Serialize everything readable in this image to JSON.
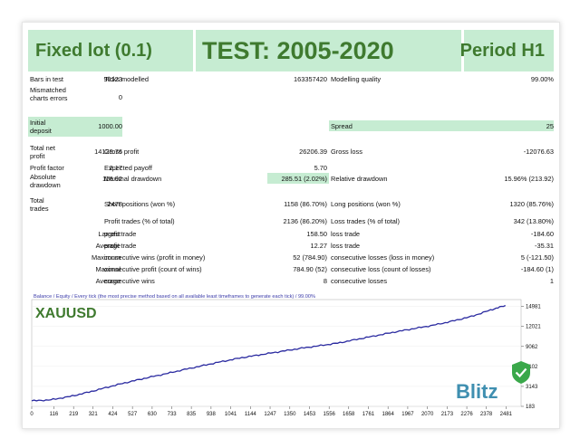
{
  "banner": {
    "left": "Fixed lot (0.1)",
    "center": "TEST: 2005-2020",
    "right": "Period H1"
  },
  "stats": {
    "bars_in_test": {
      "label": "Bars in test",
      "value": "90123"
    },
    "ticks_modelled": {
      "label": "Ticks modelled",
      "value": "163357420"
    },
    "modelling_quality": {
      "label": "Modelling quality",
      "value": "99.00%"
    },
    "mismatched": {
      "label": "Mismatched charts errors",
      "value": "0"
    },
    "initial_deposit": {
      "label": "Initial deposit",
      "value": "1000.00"
    },
    "spread": {
      "label": "Spread",
      "value": "25"
    },
    "total_net_profit": {
      "label": "Total net profit",
      "value": "14129.76"
    },
    "gross_profit": {
      "label": "Gross profit",
      "value": "26206.39"
    },
    "gross_loss": {
      "label": "Gross loss",
      "value": "-12076.63"
    },
    "profit_factor": {
      "label": "Profit factor",
      "value": "2.17"
    },
    "expected_payoff": {
      "label": "Expected payoff",
      "value": "5.70"
    },
    "absolute_drawdown": {
      "label": "Absolute drawdown",
      "value": "116.92"
    },
    "maximal_drawdown": {
      "label": "Maximal drawdown",
      "value": "285.51 (2.02%)"
    },
    "relative_drawdown": {
      "label": "Relative drawdown",
      "value": "15.96% (213.92)"
    },
    "total_trades": {
      "label": "Total trades",
      "value": "2478"
    },
    "short_positions": {
      "label": "Short positions (won %)",
      "value": "1158 (86.70%)"
    },
    "long_positions": {
      "label": "Long positions (won %)",
      "value": "1320 (85.76%)"
    },
    "profit_trades": {
      "label": "Profit trades (% of total)",
      "value": "2136 (86.20%)"
    },
    "loss_trades": {
      "label": "Loss trades (% of total)",
      "value": "342 (13.80%)"
    },
    "largest": {
      "label": "Largest",
      "profit_label": "profit trade",
      "profit_value": "158.50",
      "loss_label": "loss trade",
      "loss_value": "-184.60"
    },
    "average": {
      "label": "Average",
      "profit_label": "profit trade",
      "profit_value": "12.27",
      "loss_label": "loss trade",
      "loss_value": "-35.31"
    },
    "maximum": {
      "label": "Maximum",
      "wins_label": "consecutive wins (profit in money)",
      "wins_value": "52 (784.90)",
      "losses_label": "consecutive losses (loss in money)",
      "losses_value": "5 (-121.50)"
    },
    "maximal": {
      "label": "Maximal",
      "profit_label": "consecutive profit (count of wins)",
      "profit_value": "784.90 (52)",
      "loss_label": "consecutive loss (count of losses)",
      "loss_value": "-184.60 (1)"
    },
    "average_consec": {
      "label": "Average",
      "wins_label": "consecutive wins",
      "wins_value": "8",
      "losses_label": "consecutive losses",
      "losses_value": "1"
    }
  },
  "chart_data": {
    "type": "line",
    "header": "Balance / Equity / Every tick (the most precise method based on all available least timeframes to generate each tick) / 99.00%",
    "symbol": "XAUUSD",
    "watermark": "Blitz",
    "x_ticks": [
      "0",
      "116",
      "219",
      "321",
      "424",
      "527",
      "630",
      "733",
      "835",
      "938",
      "1041",
      "1144",
      "1247",
      "1350",
      "1453",
      "1556",
      "1658",
      "1761",
      "1864",
      "1967",
      "2070",
      "2173",
      "2276",
      "2378",
      "2481"
    ],
    "y_ticks": [
      "14981",
      "12021",
      "9062",
      "6102",
      "3143",
      "183"
    ],
    "ylim": [
      183,
      16000
    ],
    "xlim": [
      0,
      2560
    ],
    "series": [
      {
        "color": "#2a2aa0",
        "x": [
          0,
          100,
          200,
          300,
          400,
          500,
          600,
          700,
          800,
          900,
          1000,
          1100,
          1200,
          1300,
          1400,
          1500,
          1600,
          1700,
          1800,
          1900,
          2000,
          2100,
          2200,
          2300,
          2400,
          2478
        ],
        "values": [
          1000,
          1150,
          1650,
          2300,
          3050,
          3750,
          4400,
          5000,
          5650,
          6250,
          6850,
          7400,
          7850,
          8300,
          8750,
          9150,
          9550,
          10100,
          10650,
          11200,
          11700,
          12200,
          12800,
          13500,
          14450,
          15130
        ]
      }
    ]
  }
}
